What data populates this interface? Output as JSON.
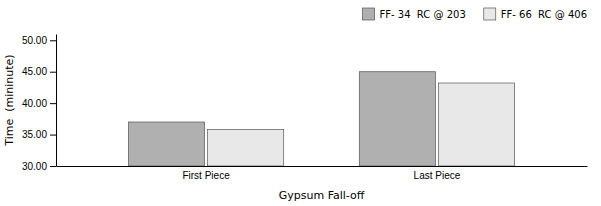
{
  "chart_data": {
    "type": "bar",
    "categories": [
      "First Piece",
      "Last Piece"
    ],
    "series": [
      {
        "name": "FF- 34  RC @ 203",
        "color": "#b0b0b0",
        "values": [
          37.0,
          45.0
        ]
      },
      {
        "name": "FF- 66  RC @ 406",
        "color": "#e8e8e8",
        "values": [
          35.8,
          43.2
        ]
      }
    ],
    "x_label": "Gypsum Fall-off",
    "y_label": "Time  (mininute)",
    "ylim": [
      30.0,
      51.0
    ],
    "yticks": [
      {
        "value": 30.0,
        "label": "30.00"
      },
      {
        "value": 35.0,
        "label": "35.00"
      },
      {
        "value": 40.0,
        "label": "40.00"
      },
      {
        "value": 45.0,
        "label": "45.00"
      },
      {
        "value": 50.0,
        "label": "50.00"
      }
    ],
    "grid": false,
    "legend": "top-right"
  }
}
